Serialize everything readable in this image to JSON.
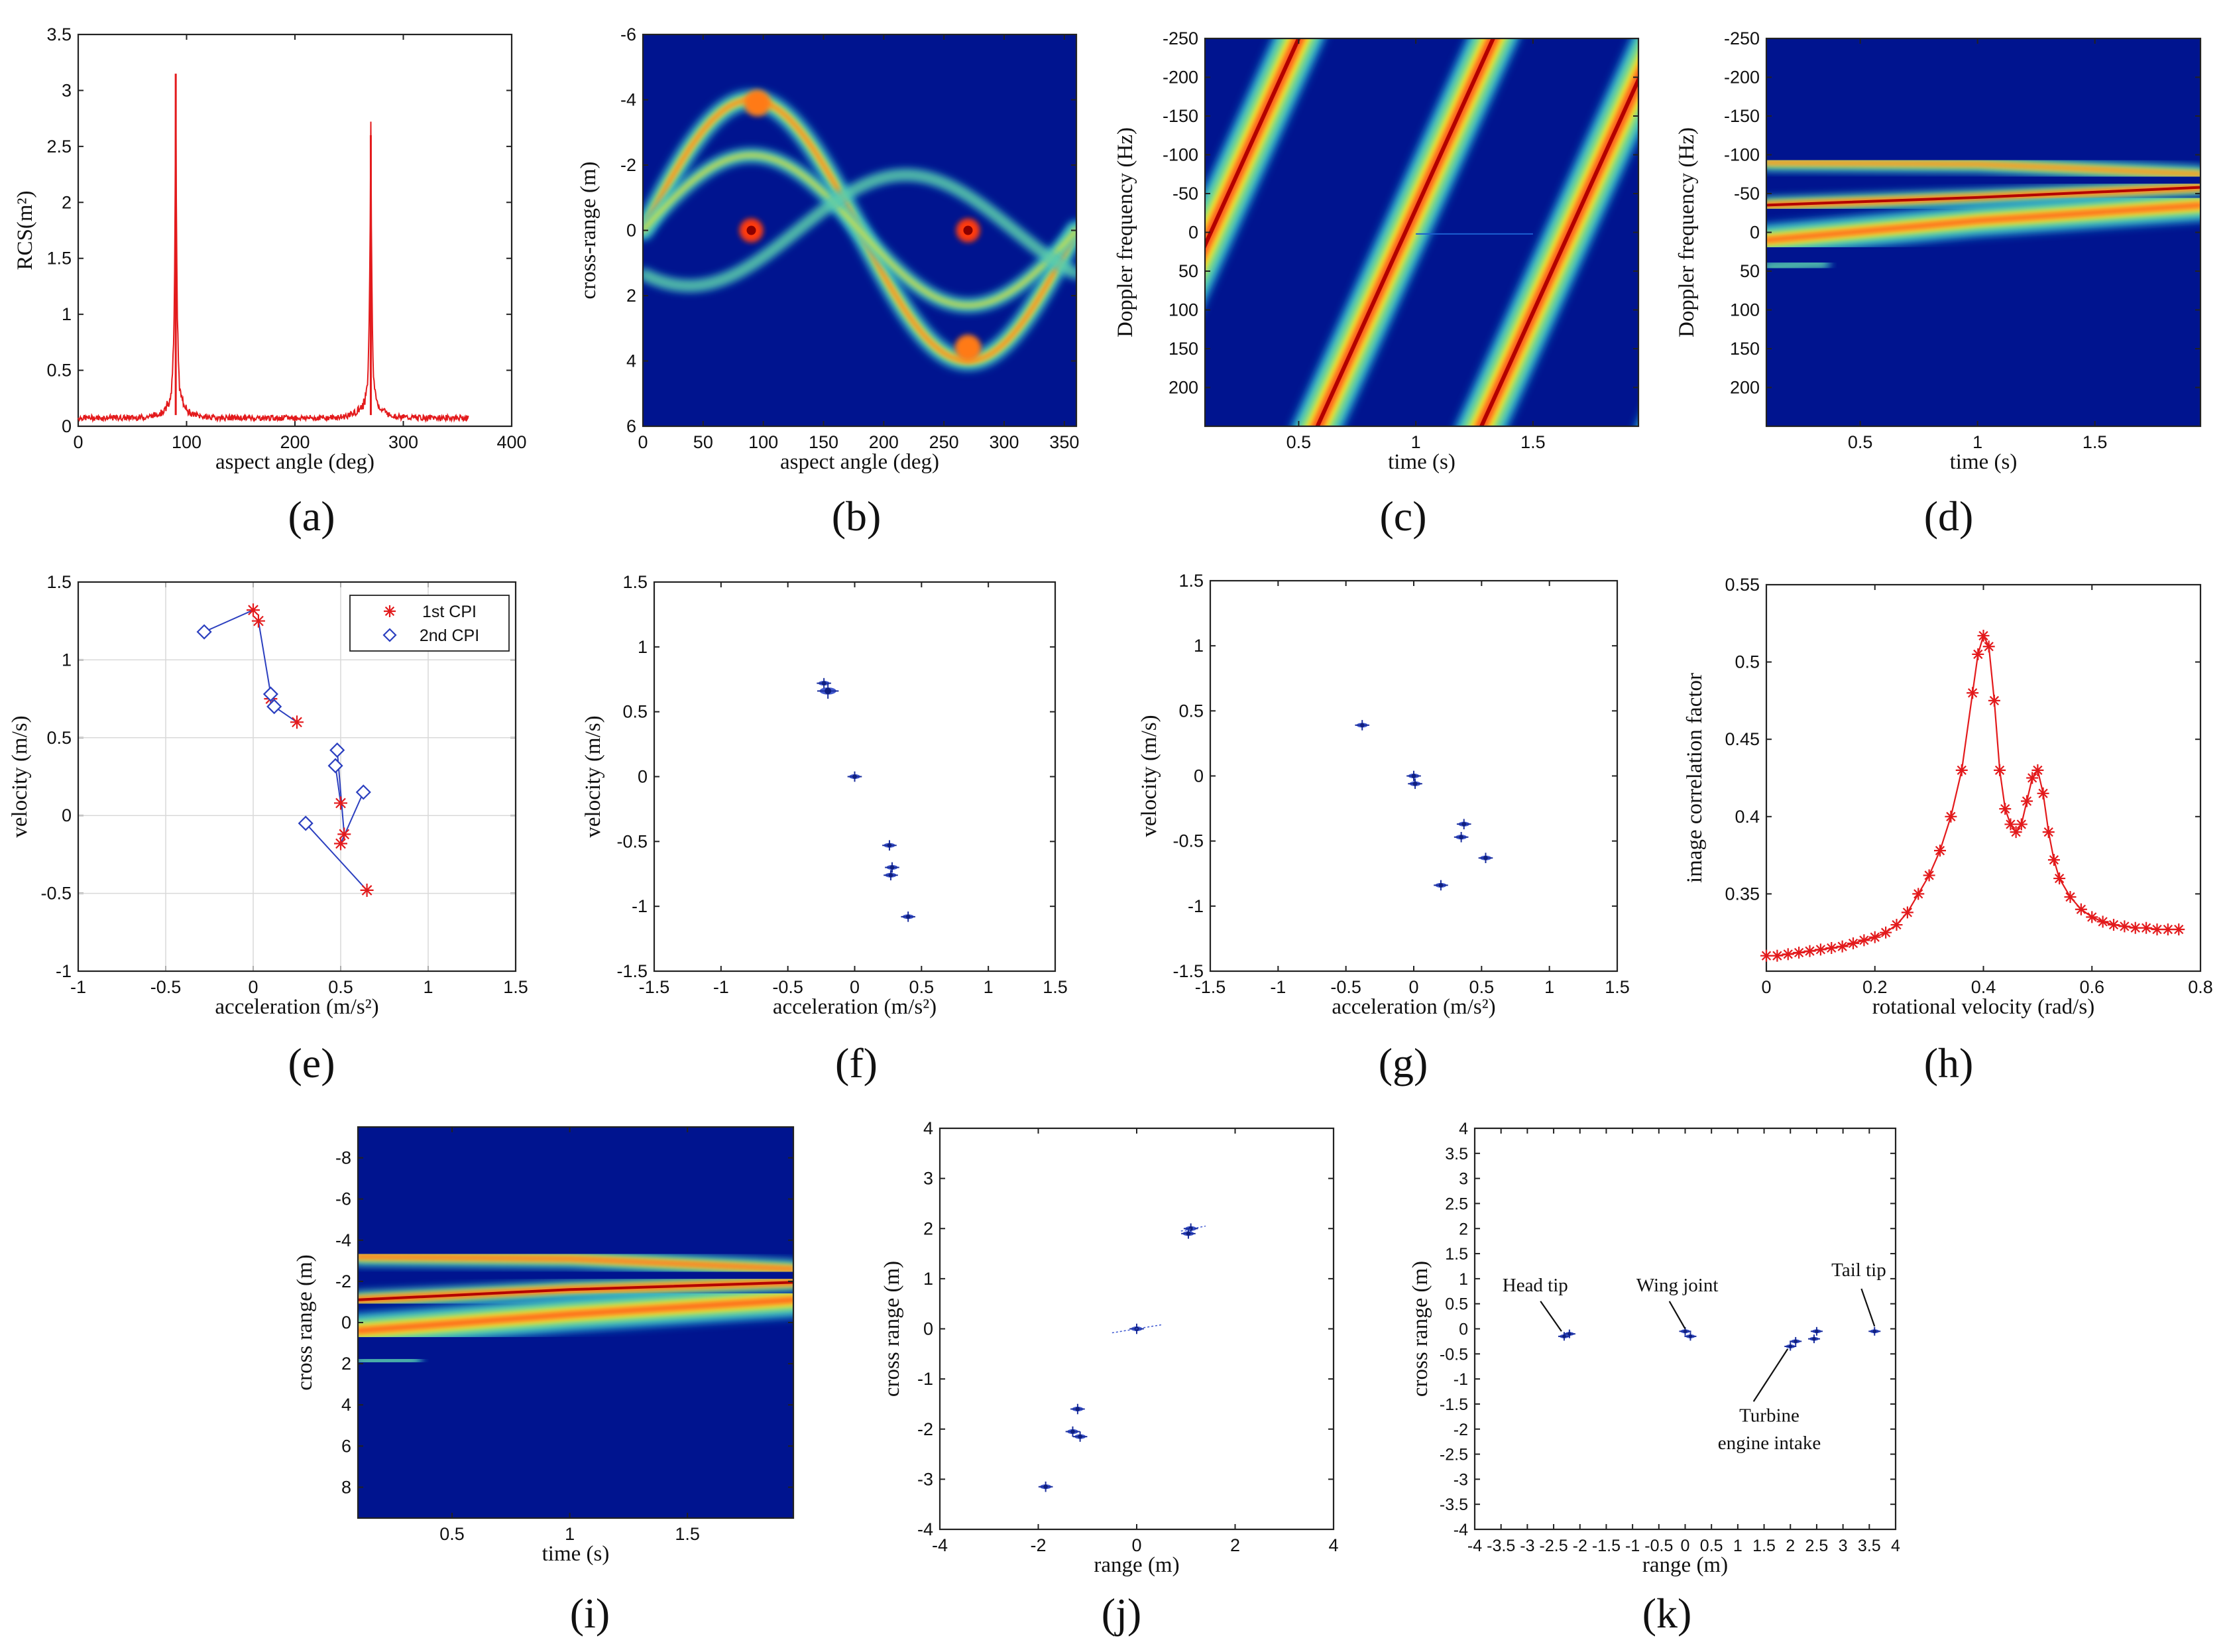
{
  "figure": {
    "panel_labels": [
      "(a)",
      "(b)",
      "(c)",
      "(d)",
      "(e)",
      "(f)",
      "(g)",
      "(h)",
      "(i)",
      "(j)",
      "(k)"
    ]
  },
  "chart_data": [
    {
      "id": "a",
      "type": "line",
      "xlabel": "aspect angle (deg)",
      "ylabel": "RCS(m²)",
      "xlim": [
        0,
        400
      ],
      "ylim": [
        0,
        3.5
      ],
      "xticks": [
        "0",
        "100",
        "200",
        "300",
        "400"
      ],
      "yticks": [
        "0",
        "0.5",
        "1",
        "1.5",
        "2",
        "2.5",
        "3",
        "3.5"
      ],
      "color": "#e31a1c",
      "baseline": 0.05,
      "peaks": [
        {
          "x": 90,
          "y": 3.15
        },
        {
          "x": 270,
          "y": 2.6
        }
      ],
      "x_end": 360
    },
    {
      "id": "b",
      "type": "heatmap",
      "xlabel": "aspect angle (deg)",
      "ylabel": "cross-range (m)",
      "xlim": [
        0,
        360
      ],
      "ylim": [
        -6,
        6
      ],
      "xticks": [
        "0",
        "50",
        "100",
        "150",
        "200",
        "250",
        "300",
        "350"
      ],
      "yticks": [
        "-6",
        "-4",
        "-2",
        "0",
        "2",
        "4",
        "6"
      ]
    },
    {
      "id": "c",
      "type": "heatmap",
      "xlabel": "time (s)",
      "ylabel": "Doppler frequency (Hz)",
      "xlim": [
        0.1,
        1.95
      ],
      "ylim": [
        -250,
        250
      ],
      "xticks": [
        "0.5",
        "1",
        "1.5"
      ],
      "yticks": [
        "-250",
        "-200",
        "-150",
        "-100",
        "-50",
        "0",
        "50",
        "100",
        "150",
        "200"
      ]
    },
    {
      "id": "d",
      "type": "heatmap",
      "xlabel": "time (s)",
      "ylabel": "Doppler frequency (Hz)",
      "xlim": [
        0.1,
        1.95
      ],
      "ylim": [
        -250,
        250
      ],
      "xticks": [
        "0.5",
        "1",
        "1.5"
      ],
      "yticks": [
        "-250",
        "-200",
        "-150",
        "-100",
        "-50",
        "0",
        "50",
        "100",
        "150",
        "200"
      ]
    },
    {
      "id": "e",
      "type": "scatter",
      "xlabel": "acceleration (m/s²)",
      "ylabel": "velocity (m/s)",
      "xlim": [
        -1,
        1.5
      ],
      "ylim": [
        -1,
        1.5
      ],
      "xticks": [
        "-1",
        "-0.5",
        "0",
        "0.5",
        "1",
        "1.5"
      ],
      "yticks": [
        "-1",
        "-0.5",
        "0",
        "0.5",
        "1",
        "1.5"
      ],
      "grid": true,
      "legend": "top-right",
      "series": [
        {
          "name": "1st CPI",
          "marker": "*",
          "color": "#e31a1c",
          "points": [
            [
              0.0,
              1.32
            ],
            [
              0.03,
              1.25
            ],
            [
              0.1,
              0.75
            ],
            [
              0.25,
              0.6
            ],
            [
              0.5,
              0.08
            ],
            [
              0.52,
              -0.12
            ],
            [
              0.5,
              -0.18
            ],
            [
              0.65,
              -0.48
            ]
          ]
        },
        {
          "name": "2nd CPI",
          "marker": "diamond",
          "color": "#2b3fbf",
          "points": [
            [
              -0.28,
              1.18
            ],
            [
              0.1,
              0.78
            ],
            [
              0.12,
              0.7
            ],
            [
              0.48,
              0.42
            ],
            [
              0.47,
              0.32
            ],
            [
              0.63,
              0.15
            ],
            [
              0.3,
              -0.05
            ]
          ]
        }
      ],
      "links": [
        [
          [
            -0.28,
            1.18
          ],
          [
            0.0,
            1.32
          ]
        ],
        [
          [
            0.03,
            1.25
          ],
          [
            0.1,
            0.78
          ]
        ],
        [
          [
            0.12,
            0.7
          ],
          [
            0.25,
            0.6
          ]
        ],
        [
          [
            0.48,
            0.42
          ],
          [
            0.52,
            -0.12
          ]
        ],
        [
          [
            0.63,
            0.15
          ],
          [
            0.5,
            -0.18
          ]
        ],
        [
          [
            0.3,
            -0.05
          ],
          [
            0.65,
            -0.48
          ]
        ],
        [
          [
            0.47,
            0.32
          ],
          [
            0.5,
            0.08
          ]
        ]
      ]
    },
    {
      "id": "f",
      "type": "scatter",
      "xlabel": "acceleration (m/s²)",
      "ylabel": "velocity (m/s)",
      "xlim": [
        -1.5,
        1.5
      ],
      "ylim": [
        -1.5,
        1.5
      ],
      "xticks": [
        "-1.5",
        "-1",
        "-0.5",
        "0",
        "0.5",
        "1",
        "1.5"
      ],
      "yticks": [
        "-1.5",
        "-1",
        "-0.5",
        "0",
        "0.5",
        "1",
        "1.5"
      ],
      "points": [
        [
          -0.23,
          0.72
        ],
        [
          -0.2,
          0.66
        ],
        [
          0.0,
          0.0
        ],
        [
          0.26,
          -0.53
        ],
        [
          0.28,
          -0.7
        ],
        [
          0.27,
          -0.76
        ],
        [
          0.4,
          -1.08
        ]
      ]
    },
    {
      "id": "g",
      "type": "scatter",
      "xlabel": "acceleration (m/s²)",
      "ylabel": "velocity (m/s)",
      "xlim": [
        -1.5,
        1.5
      ],
      "ylim": [
        -1.5,
        1.5
      ],
      "xticks": [
        "-1.5",
        "-1",
        "-0.5",
        "0",
        "0.5",
        "1",
        "1.5"
      ],
      "yticks": [
        "-1.5",
        "-1",
        "-0.5",
        "0",
        "0.5",
        "1",
        "1.5"
      ],
      "points": [
        [
          -0.38,
          0.39
        ],
        [
          0.0,
          0.0
        ],
        [
          0.01,
          -0.06
        ],
        [
          0.37,
          -0.37
        ],
        [
          0.35,
          -0.47
        ],
        [
          0.53,
          -0.63
        ],
        [
          0.2,
          -0.84
        ]
      ]
    },
    {
      "id": "h",
      "type": "line",
      "xlabel": "rotational velocity (rad/s)",
      "ylabel": "image correlation factor",
      "xlim": [
        0,
        0.8
      ],
      "ylim": [
        0.3,
        0.55
      ],
      "xticks": [
        "0",
        "0.2",
        "0.4",
        "0.6",
        "0.8"
      ],
      "yticks": [
        "0.35",
        "0.4",
        "0.45",
        "0.5",
        "0.55"
      ],
      "color": "#e31a1c",
      "x": [
        0.0,
        0.02,
        0.04,
        0.06,
        0.08,
        0.1,
        0.12,
        0.14,
        0.16,
        0.18,
        0.2,
        0.22,
        0.24,
        0.26,
        0.28,
        0.3,
        0.32,
        0.34,
        0.36,
        0.38,
        0.39,
        0.4,
        0.41,
        0.42,
        0.43,
        0.44,
        0.45,
        0.46,
        0.47,
        0.48,
        0.49,
        0.5,
        0.51,
        0.52,
        0.53,
        0.54,
        0.56,
        0.58,
        0.6,
        0.62,
        0.64,
        0.66,
        0.68,
        0.7,
        0.72,
        0.74,
        0.76
      ],
      "y": [
        0.31,
        0.31,
        0.311,
        0.312,
        0.313,
        0.314,
        0.315,
        0.316,
        0.318,
        0.32,
        0.322,
        0.325,
        0.33,
        0.338,
        0.35,
        0.362,
        0.378,
        0.4,
        0.43,
        0.48,
        0.505,
        0.517,
        0.51,
        0.475,
        0.43,
        0.405,
        0.395,
        0.39,
        0.395,
        0.41,
        0.425,
        0.43,
        0.415,
        0.39,
        0.372,
        0.36,
        0.348,
        0.34,
        0.335,
        0.332,
        0.33,
        0.329,
        0.328,
        0.328,
        0.327,
        0.327,
        0.327
      ]
    },
    {
      "id": "i",
      "type": "heatmap",
      "xlabel": "time (s)",
      "ylabel": "cross range (m)",
      "xlim": [
        0.1,
        1.95
      ],
      "ylim": [
        -9.5,
        9.5
      ],
      "xticks": [
        "0.5",
        "1",
        "1.5"
      ],
      "yticks": [
        "-8",
        "-6",
        "-4",
        "-2",
        "0",
        "2",
        "4",
        "6",
        "8"
      ]
    },
    {
      "id": "j",
      "type": "scatter",
      "xlabel": "range (m)",
      "ylabel": "cross range (m)",
      "xlim": [
        -4,
        4
      ],
      "ylim": [
        -4,
        4
      ],
      "xticks": [
        "-4",
        "-2",
        "0",
        "2",
        "4"
      ],
      "yticks": [
        "-4",
        "-3",
        "-2",
        "-1",
        "0",
        "1",
        "2",
        "3",
        "4"
      ],
      "points": [
        [
          1.1,
          2.0
        ],
        [
          1.05,
          1.9
        ],
        [
          0.0,
          0.0
        ],
        [
          -1.2,
          -1.6
        ],
        [
          -1.3,
          -2.05
        ],
        [
          -1.15,
          -2.15
        ],
        [
          -1.85,
          -3.15
        ]
      ]
    },
    {
      "id": "k",
      "type": "scatter",
      "xlabel": "range (m)",
      "ylabel": "cross range (m)",
      "xlim": [
        -4,
        4
      ],
      "ylim": [
        -4,
        4
      ],
      "xticks": [
        "-4",
        "-3.5",
        "-3",
        "-2.5",
        "-2",
        "-1.5",
        "-1",
        "-0.5",
        "0",
        "0.5",
        "1",
        "1.5",
        "2",
        "2.5",
        "3",
        "3.5",
        "4"
      ],
      "yticks": [
        "-4",
        "-3.5",
        "-3",
        "-2.5",
        "-2",
        "-1.5",
        "-1",
        "-0.5",
        "0",
        "0.5",
        "1",
        "1.5",
        "2",
        "2.5",
        "3",
        "3.5",
        "4"
      ],
      "points": [
        [
          -2.3,
          -0.15
        ],
        [
          -2.2,
          -0.1
        ],
        [
          0.0,
          -0.05
        ],
        [
          0.1,
          -0.15
        ],
        [
          2.0,
          -0.35
        ],
        [
          2.1,
          -0.25
        ],
        [
          2.45,
          -0.2
        ],
        [
          2.5,
          -0.05
        ],
        [
          3.6,
          -0.05
        ]
      ],
      "annotations": [
        {
          "label": "Head tip",
          "at": [
            -2.35,
            -0.1
          ]
        },
        {
          "label": "Wing joint",
          "at": [
            0.0,
            -0.05
          ]
        },
        {
          "label": "Turbine",
          "at": [
            2.05,
            -0.3
          ]
        },
        {
          "label": "engine intake",
          "at": [
            2.05,
            -0.3
          ]
        },
        {
          "label": "Tail tip",
          "at": [
            3.6,
            -0.05
          ]
        }
      ]
    }
  ]
}
